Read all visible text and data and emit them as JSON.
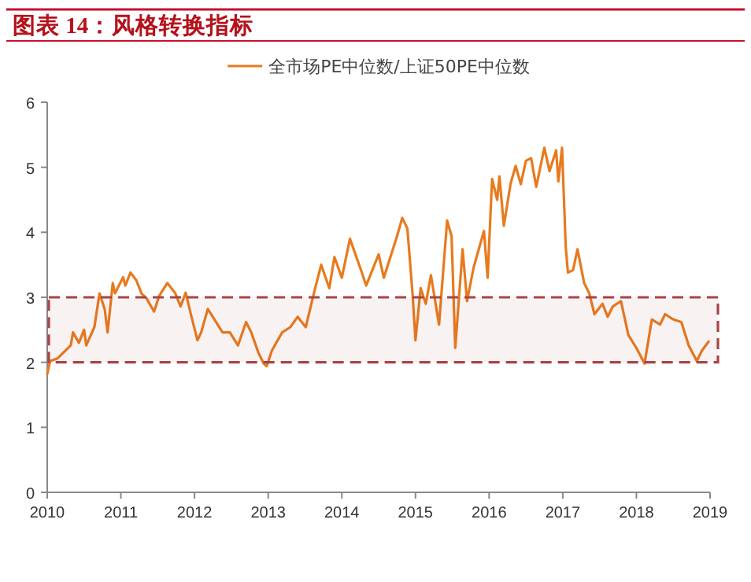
{
  "chart_data": {
    "type": "line",
    "title": "图表 14：风格转换指标",
    "series": [
      {
        "name": "全市场PE中位数/上证50PE中位数",
        "color": "#e87a1e",
        "x": [
          2010.0,
          2010.04,
          2010.14,
          2010.32,
          2010.35,
          2010.43,
          2010.5,
          2010.53,
          2010.64,
          2010.71,
          2010.78,
          2010.82,
          2010.89,
          2010.92,
          2011.03,
          2011.06,
          2011.13,
          2011.21,
          2011.28,
          2011.35,
          2011.45,
          2011.52,
          2011.63,
          2011.74,
          2011.81,
          2011.88,
          2011.95,
          2012.04,
          2012.09,
          2012.18,
          2012.27,
          2012.38,
          2012.48,
          2012.59,
          2012.7,
          2012.77,
          2012.87,
          2012.94,
          2012.98,
          2013.05,
          2013.19,
          2013.3,
          2013.4,
          2013.51,
          2013.62,
          2013.72,
          2013.83,
          2013.9,
          2014.0,
          2014.11,
          2014.26,
          2014.33,
          2014.5,
          2014.57,
          2014.75,
          2014.82,
          2014.89,
          2014.96,
          2015.0,
          2015.07,
          2015.14,
          2015.21,
          2015.32,
          2015.43,
          2015.49,
          2015.54,
          2015.64,
          2015.7,
          2015.79,
          2015.93,
          2015.98,
          2016.04,
          2016.11,
          2016.14,
          2016.2,
          2016.29,
          2016.36,
          2016.43,
          2016.5,
          2016.57,
          2016.64,
          2016.75,
          2016.82,
          2016.91,
          2016.94,
          2016.99,
          2017.04,
          2017.07,
          2017.14,
          2017.2,
          2017.29,
          2017.36,
          2017.43,
          2017.54,
          2017.61,
          2017.68,
          2017.79,
          2017.89,
          2018.0,
          2018.11,
          2018.21,
          2018.32,
          2018.39,
          2018.5,
          2018.61,
          2018.71,
          2018.82,
          2018.89,
          2018.98
        ],
        "values": [
          1.82,
          2.02,
          2.06,
          2.26,
          2.46,
          2.3,
          2.5,
          2.26,
          2.54,
          3.06,
          2.82,
          2.46,
          3.22,
          3.06,
          3.31,
          3.18,
          3.38,
          3.26,
          3.06,
          2.98,
          2.78,
          3.02,
          3.22,
          3.06,
          2.86,
          3.07,
          2.74,
          2.34,
          2.46,
          2.82,
          2.66,
          2.46,
          2.46,
          2.26,
          2.62,
          2.46,
          2.14,
          1.98,
          1.94,
          2.18,
          2.46,
          2.54,
          2.7,
          2.54,
          3.06,
          3.5,
          3.14,
          3.62,
          3.3,
          3.9,
          3.42,
          3.18,
          3.66,
          3.3,
          3.94,
          4.22,
          4.06,
          3.06,
          2.34,
          3.14,
          2.9,
          3.34,
          2.58,
          4.18,
          3.94,
          2.22,
          3.74,
          2.94,
          3.46,
          4.02,
          3.3,
          4.82,
          4.5,
          4.86,
          4.1,
          4.74,
          5.02,
          4.74,
          5.1,
          5.14,
          4.7,
          5.3,
          4.94,
          5.26,
          4.78,
          5.3,
          3.78,
          3.38,
          3.42,
          3.74,
          3.22,
          3.06,
          2.74,
          2.9,
          2.7,
          2.86,
          2.94,
          2.42,
          2.22,
          1.98,
          2.66,
          2.58,
          2.74,
          2.66,
          2.62,
          2.26,
          2.02,
          2.18,
          2.32
        ]
      }
    ],
    "xlim": [
      2010,
      2019
    ],
    "xticks": [
      2010,
      2011,
      2012,
      2013,
      2014,
      2015,
      2016,
      2017,
      2018,
      2019
    ],
    "ylim": [
      0,
      6
    ],
    "yticks": [
      0,
      1,
      2,
      3,
      4,
      5,
      6
    ],
    "bands": [
      {
        "axis": "y",
        "from": 2,
        "to": 3,
        "color": "#a84448"
      }
    ],
    "legend": "top",
    "line_style": "solid"
  }
}
